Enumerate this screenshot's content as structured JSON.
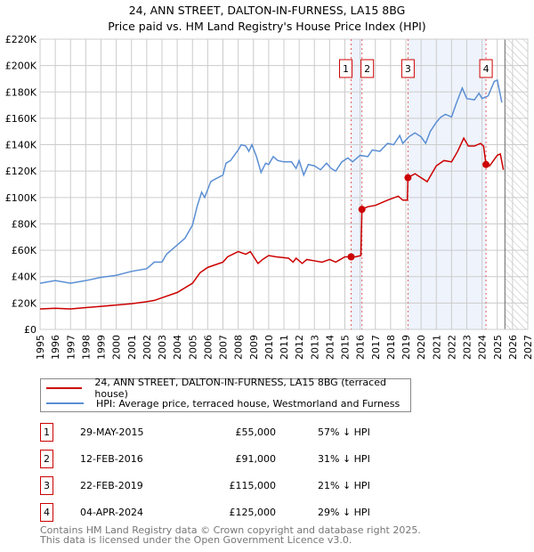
{
  "chart_data": {
    "type": "line",
    "title": "24, ANN STREET, DALTON-IN-FURNESS, LA15 8BG",
    "subtitle": "Price paid vs. HM Land Registry's House Price Index (HPI)",
    "xlim": [
      1995,
      2027
    ],
    "ylim": [
      0,
      220000
    ],
    "x_ticks": [
      "1995",
      "1996",
      "1997",
      "1998",
      "1999",
      "2000",
      "2001",
      "2002",
      "2003",
      "2004",
      "2005",
      "2006",
      "2007",
      "2008",
      "2009",
      "2010",
      "2011",
      "2012",
      "2013",
      "2014",
      "2015",
      "2016",
      "2017",
      "2018",
      "2019",
      "2020",
      "2021",
      "2022",
      "2023",
      "2024",
      "2025",
      "2026",
      "2027"
    ],
    "y_ticks": [
      {
        "v": 0,
        "label": "£0"
      },
      {
        "v": 20000,
        "label": "£20K"
      },
      {
        "v": 40000,
        "label": "£40K"
      },
      {
        "v": 60000,
        "label": "£60K"
      },
      {
        "v": 80000,
        "label": "£80K"
      },
      {
        "v": 100000,
        "label": "£100K"
      },
      {
        "v": 120000,
        "label": "£120K"
      },
      {
        "v": 140000,
        "label": "£140K"
      },
      {
        "v": 160000,
        "label": "£160K"
      },
      {
        "v": 180000,
        "label": "£180K"
      },
      {
        "v": 200000,
        "label": "£200K"
      },
      {
        "v": 220000,
        "label": "£220K"
      }
    ],
    "grid": true,
    "shaded_ranges": [
      [
        2015.41,
        2016.12
      ],
      [
        2019.14,
        2024.26
      ]
    ],
    "forecast_start": 2025.5,
    "series": [
      {
        "name": "24, ANN STREET, DALTON-IN-FURNESS, LA15 8BG (terraced house)",
        "color": "#cc0000",
        "points": [
          [
            1995,
            15500
          ],
          [
            1996,
            16000
          ],
          [
            1997,
            15500
          ],
          [
            1998,
            16500
          ],
          [
            1999,
            17500
          ],
          [
            2000,
            18500
          ],
          [
            2001,
            19500
          ],
          [
            2002,
            21000
          ],
          [
            2002.5,
            22000
          ],
          [
            2003,
            24000
          ],
          [
            2004,
            28000
          ],
          [
            2005,
            35000
          ],
          [
            2005.5,
            43000
          ],
          [
            2006,
            47000
          ],
          [
            2006.5,
            49000
          ],
          [
            2007,
            51000
          ],
          [
            2007.3,
            55000
          ],
          [
            2008,
            59000
          ],
          [
            2008.5,
            57000
          ],
          [
            2008.8,
            59000
          ],
          [
            2009.3,
            50000
          ],
          [
            2009.6,
            53000
          ],
          [
            2010,
            56000
          ],
          [
            2010.5,
            55000
          ],
          [
            2011.3,
            54000
          ],
          [
            2011.6,
            51000
          ],
          [
            2011.8,
            54000
          ],
          [
            2012.2,
            50000
          ],
          [
            2012.5,
            53000
          ],
          [
            2013,
            52000
          ],
          [
            2013.5,
            51000
          ],
          [
            2014,
            53000
          ],
          [
            2014.4,
            51000
          ],
          [
            2015,
            55000
          ],
          [
            2015.41,
            55000
          ],
          [
            2015.7,
            55000
          ],
          [
            2016.05,
            56000
          ],
          [
            2016.12,
            91000
          ],
          [
            2016.5,
            93000
          ],
          [
            2017,
            94000
          ],
          [
            2017.8,
            98000
          ],
          [
            2018.5,
            101000
          ],
          [
            2018.8,
            98000
          ],
          [
            2019.1,
            98000
          ],
          [
            2019.14,
            115000
          ],
          [
            2019.6,
            118000
          ],
          [
            2020,
            115000
          ],
          [
            2020.4,
            112000
          ],
          [
            2021,
            124000
          ],
          [
            2021.5,
            128000
          ],
          [
            2022,
            127000
          ],
          [
            2022.4,
            135000
          ],
          [
            2022.8,
            145000
          ],
          [
            2023.1,
            139000
          ],
          [
            2023.5,
            139000
          ],
          [
            2023.9,
            141000
          ],
          [
            2024.1,
            139000
          ],
          [
            2024.26,
            125000
          ],
          [
            2024.5,
            124000
          ],
          [
            2025,
            132000
          ],
          [
            2025.2,
            133000
          ],
          [
            2025.4,
            121000
          ]
        ]
      },
      {
        "name": "HPI: Average price, terraced house, Westmorland and Furness",
        "color": "#5b8fd4",
        "points": [
          [
            1995,
            35000
          ],
          [
            1996,
            37000
          ],
          [
            1997,
            35000
          ],
          [
            1998,
            37000
          ],
          [
            1999,
            39500
          ],
          [
            2000,
            41000
          ],
          [
            2001,
            44000
          ],
          [
            2002,
            46000
          ],
          [
            2002.5,
            51000
          ],
          [
            2003,
            51000
          ],
          [
            2003.3,
            57000
          ],
          [
            2004,
            64000
          ],
          [
            2004.5,
            69000
          ],
          [
            2005,
            79000
          ],
          [
            2005.3,
            93000
          ],
          [
            2005.6,
            104000
          ],
          [
            2005.8,
            100000
          ],
          [
            2006.2,
            112000
          ],
          [
            2006.5,
            114000
          ],
          [
            2007,
            117000
          ],
          [
            2007.2,
            126000
          ],
          [
            2007.5,
            128000
          ],
          [
            2008,
            136000
          ],
          [
            2008.2,
            140000
          ],
          [
            2008.5,
            139000
          ],
          [
            2008.7,
            135000
          ],
          [
            2008.9,
            140000
          ],
          [
            2009.2,
            131000
          ],
          [
            2009.5,
            119000
          ],
          [
            2009.8,
            126000
          ],
          [
            2010,
            125000
          ],
          [
            2010.3,
            131000
          ],
          [
            2010.6,
            128000
          ],
          [
            2011,
            127000
          ],
          [
            2011.5,
            127000
          ],
          [
            2011.8,
            122000
          ],
          [
            2012,
            128000
          ],
          [
            2012.3,
            117000
          ],
          [
            2012.6,
            125000
          ],
          [
            2013,
            124000
          ],
          [
            2013.4,
            121000
          ],
          [
            2013.8,
            126000
          ],
          [
            2014.1,
            122000
          ],
          [
            2014.4,
            120000
          ],
          [
            2014.8,
            127000
          ],
          [
            2015.2,
            130000
          ],
          [
            2015.5,
            127000
          ],
          [
            2016,
            132000
          ],
          [
            2016.5,
            131000
          ],
          [
            2016.8,
            136000
          ],
          [
            2017.3,
            135000
          ],
          [
            2017.8,
            141000
          ],
          [
            2018.2,
            140000
          ],
          [
            2018.6,
            147000
          ],
          [
            2018.8,
            141000
          ],
          [
            2019.2,
            146000
          ],
          [
            2019.6,
            149000
          ],
          [
            2020,
            146000
          ],
          [
            2020.3,
            141000
          ],
          [
            2020.6,
            150000
          ],
          [
            2021,
            157000
          ],
          [
            2021.3,
            161000
          ],
          [
            2021.6,
            163000
          ],
          [
            2022,
            161000
          ],
          [
            2022.3,
            171000
          ],
          [
            2022.7,
            183000
          ],
          [
            2023,
            175000
          ],
          [
            2023.5,
            174000
          ],
          [
            2023.8,
            179000
          ],
          [
            2024,
            175000
          ],
          [
            2024.4,
            177000
          ],
          [
            2024.8,
            188000
          ],
          [
            2025,
            189000
          ],
          [
            2025.3,
            172000
          ]
        ]
      }
    ],
    "sales": [
      {
        "label": "1",
        "x": 2015.41,
        "value": 55000,
        "date": "29-MAY-2015",
        "price": "£55,000",
        "hpi": "57% ↓ HPI"
      },
      {
        "label": "2",
        "x": 2016.12,
        "value": 91000,
        "date": "12-FEB-2016",
        "price": "£91,000",
        "hpi": "31% ↓ HPI"
      },
      {
        "label": "3",
        "x": 2019.14,
        "value": 115000,
        "date": "22-FEB-2019",
        "price": "£115,000",
        "hpi": "21% ↓ HPI"
      },
      {
        "label": "4",
        "x": 2024.26,
        "value": 125000,
        "date": "04-APR-2024",
        "price": "£125,000",
        "hpi": "29% ↓ HPI"
      }
    ]
  },
  "footer": {
    "line1": "Contains HM Land Registry data © Crown copyright and database right 2025.",
    "line2": "This data is licensed under the Open Government Licence v3.0."
  }
}
